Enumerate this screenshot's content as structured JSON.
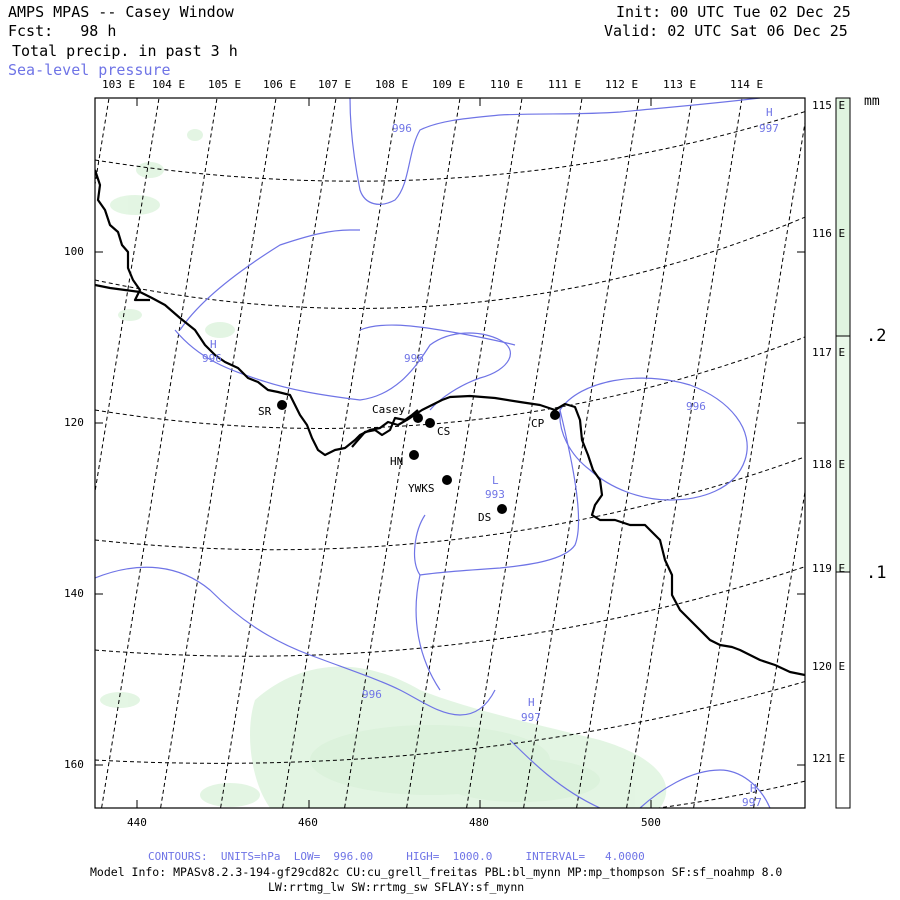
{
  "header": {
    "title": "AMPS MPAS -- Casey Window",
    "fcst": "Fcst:   98 h",
    "field": "Total precip. in past 3 h",
    "overlay": "Sea-level pressure",
    "init": "Init: 00 UTC Tue 02 Dec 25",
    "valid": "Valid: 02 UTC Sat 06 Dec 25"
  },
  "longitude_labels_top": [
    "103 E",
    "104 E",
    "105 E",
    "106 E",
    "107 E",
    "108 E",
    "109 E",
    "110 E",
    "111 E",
    "112 E",
    "113 E",
    "114 E"
  ],
  "latitude_labels_right": [
    "115 E",
    "116 E",
    "117 E",
    "118 E",
    "119 E",
    "120 E",
    "121 E"
  ],
  "grid_y_labels": [
    "100",
    "120",
    "140",
    "160"
  ],
  "grid_x_labels": [
    "440",
    "460",
    "480",
    "500"
  ],
  "stations": [
    {
      "label": "SR"
    },
    {
      "label": "Casey"
    },
    {
      "label": "CS"
    },
    {
      "label": "CP"
    },
    {
      "label": "HN"
    },
    {
      "label": "YWKS"
    },
    {
      "label": "DS"
    }
  ],
  "pressure_labels": [
    "996",
    "996",
    "996",
    "996",
    "997",
    "997",
    "997",
    "993"
  ],
  "pressure_centers": [
    "H",
    "H",
    "H",
    "H",
    "L"
  ],
  "colorbar": {
    "unit": "mm",
    "ticks": [
      ".2",
      ".1"
    ],
    "color_light": "#e4f6e4",
    "color_mid": "#d8f2d8"
  },
  "footer": {
    "contours": "CONTOURS:  UNITS=hPa  LOW=  996.00     HIGH=  1000.0     INTERVAL=   4.0000",
    "model_info": "Model Info: MPASv8.2.3-194-gf29cd82c CU:cu_grell_freitas PBL:bl_mynn MP:mp_thompson SF:sf_noahmp 8.0",
    "model_info2": "LW:rrtmg_lw SW:rrtmg_sw SFLAY:sf_mynn"
  },
  "colors": {
    "contour": "#6f74e6",
    "coast": "#000000",
    "precip": "#dff4df"
  }
}
